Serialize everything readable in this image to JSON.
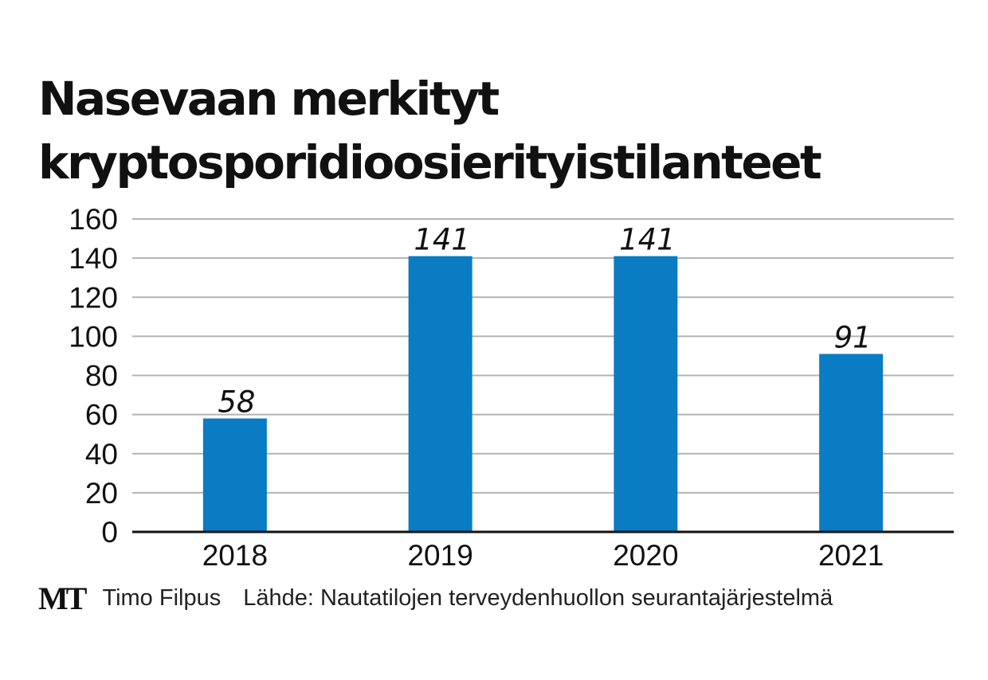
{
  "brand": {
    "logo": "MT",
    "author": "Timo Filpus"
  },
  "source": "Lähde: Nautatilojen terveydenhuollon seurantajärjestelmä",
  "colors": {
    "bar": "#0a7cc4",
    "grid": "#b3b3b3",
    "axis": "#111111",
    "text": "#111111"
  },
  "chart_data": {
    "type": "bar",
    "title_lines": [
      "Nasevaan merkityt",
      "kryptosporidioosierityistilanteet"
    ],
    "categories": [
      "2018",
      "2019",
      "2020",
      "2021"
    ],
    "values": [
      58,
      141,
      141,
      91
    ],
    "data_labels": [
      "58",
      "141",
      "141",
      "91"
    ],
    "yticks": [
      "0",
      "20",
      "40",
      "60",
      "80",
      "100",
      "120",
      "140",
      "160"
    ],
    "ylim": [
      0,
      160
    ],
    "grid": true,
    "legend": "none"
  }
}
